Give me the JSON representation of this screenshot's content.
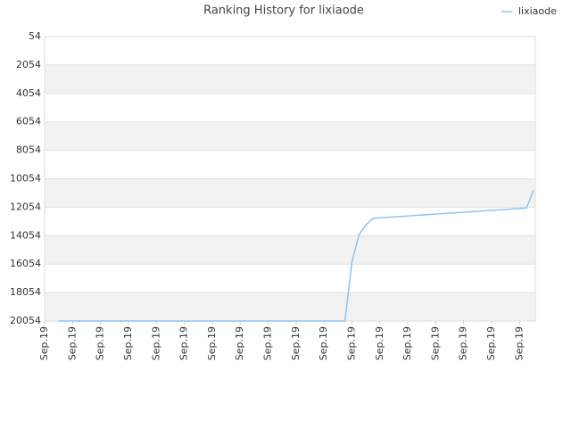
{
  "chart_data": {
    "type": "line",
    "title": "Ranking History for lixiaode",
    "categories": [
      "Sep.19",
      null,
      null,
      null,
      "Sep.19",
      null,
      null,
      null,
      "Sep.19",
      null,
      null,
      null,
      "Sep.19",
      null,
      null,
      null,
      "Sep.19",
      null,
      null,
      null,
      "Sep.19",
      null,
      null,
      null,
      "Sep.19",
      null,
      null,
      null,
      "Sep.19",
      null,
      null,
      null,
      "Sep.19",
      null,
      null,
      null,
      "Sep.19",
      null,
      null,
      null,
      "Sep.19",
      null,
      null,
      null,
      "Sep.19",
      null,
      null,
      null,
      "Sep.19",
      null,
      null,
      null,
      "Sep.19",
      null,
      null,
      null,
      "Sep.19",
      null,
      null,
      null,
      "Sep.19",
      null,
      null,
      null,
      "Sep.19",
      null,
      null,
      null,
      "Sep.19",
      null,
      null
    ],
    "series": [
      {
        "name": "lixiaode",
        "color": "#90c3ee",
        "values": [
          null,
          null,
          20054,
          20054,
          20054,
          20054,
          20054,
          20054,
          20054,
          20054,
          20054,
          20054,
          20054,
          20054,
          20054,
          20054,
          20054,
          20054,
          20054,
          20054,
          20054,
          20054,
          20054,
          20054,
          20054,
          20054,
          20054,
          20054,
          20054,
          20054,
          20054,
          20054,
          20054,
          20054,
          20054,
          20054,
          20054,
          20054,
          20054,
          20054,
          20054,
          20054,
          20054,
          20054,
          15900,
          14000,
          13300,
          12850,
          12800,
          12767,
          12734,
          12701,
          12668,
          12635,
          12602,
          12569,
          12536,
          12503,
          12470,
          12437,
          12404,
          12371,
          12338,
          12305,
          12272,
          12239,
          12206,
          12173,
          12140,
          12107,
          10850
        ]
      }
    ],
    "ylim": [
      20054,
      54
    ],
    "yticks": [
      54,
      2054,
      4054,
      6054,
      8054,
      10054,
      12054,
      14054,
      16054,
      18054,
      20054
    ],
    "grid": true,
    "legend": "top-right"
  }
}
